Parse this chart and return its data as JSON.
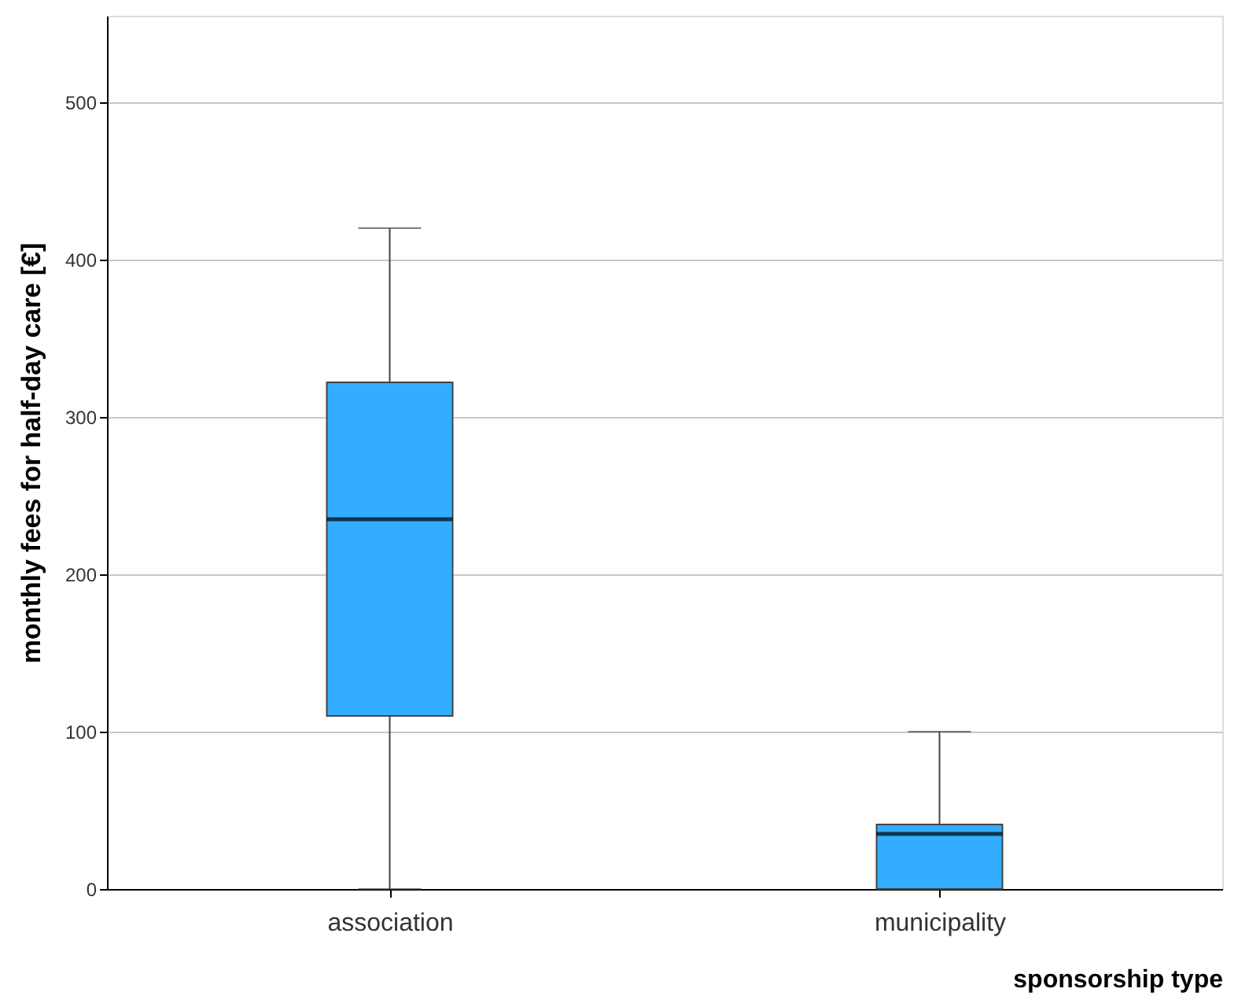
{
  "chart_data": {
    "type": "box",
    "xlabel": "sponsorship type",
    "ylabel": "monthly fees for half-day care [€]",
    "categories": [
      "association",
      "municipality"
    ],
    "boxes": [
      {
        "low": 0,
        "q1": 110,
        "median": 235,
        "q3": 322,
        "high": 420
      },
      {
        "low": 0,
        "q1": 0,
        "median": 35,
        "q3": 41,
        "high": 100
      }
    ],
    "color": "#33adff",
    "ylim": [
      0,
      555
    ],
    "yticks": [
      0,
      100,
      200,
      300,
      400,
      500
    ],
    "grid": "y"
  }
}
